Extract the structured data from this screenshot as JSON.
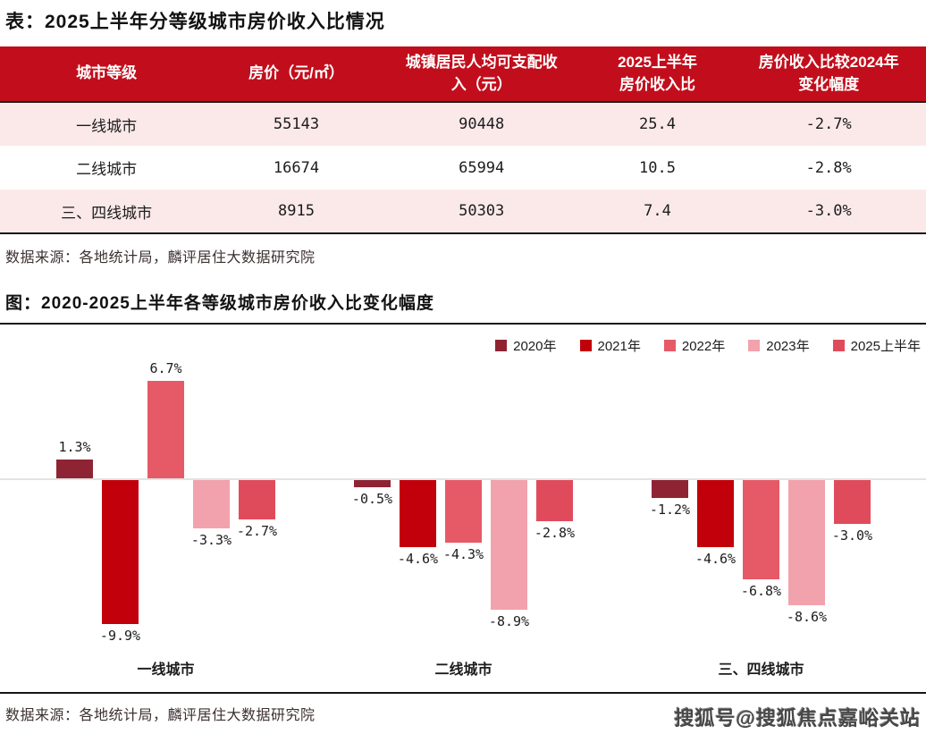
{
  "table_section": {
    "title": "表：2025上半年分等级城市房价收入比情况",
    "columns": [
      "城市等级",
      "房价（元/㎡）",
      "城镇居民人均可支配收\n入（元）",
      "2025上半年\n房价收入比",
      "房价收入比较2024年\n变化幅度"
    ],
    "rows": [
      {
        "tier": "一线城市",
        "price": "55143",
        "income": "90448",
        "ratio": "25.4",
        "change": "-2.7%"
      },
      {
        "tier": "二线城市",
        "price": "16674",
        "income": "65994",
        "ratio": "10.5",
        "change": "-2.8%"
      },
      {
        "tier": "三、四线城市",
        "price": "8915",
        "income": "50303",
        "ratio": "7.4",
        "change": "-3.0%"
      }
    ],
    "source": "数据来源：各地统计局，麟评居住大数据研究院"
  },
  "chart_section": {
    "title": "图：2020-2025上半年各等级城市房价收入比变化幅度",
    "source": "数据来源：各地统计局，麟评居住大数据研究院"
  },
  "chart_data": {
    "type": "bar",
    "title": "2020-2025上半年各等级城市房价收入比变化幅度",
    "categories": [
      "一线城市",
      "二线城市",
      "三、四线城市"
    ],
    "series": [
      {
        "name": "2020年",
        "color": "#8E2433",
        "values": [
          1.3,
          -0.5,
          -1.2
        ]
      },
      {
        "name": "2021年",
        "color": "#C2000B",
        "values": [
          -9.9,
          -4.6,
          -4.6
        ]
      },
      {
        "name": "2022年",
        "color": "#E65A68",
        "values": [
          6.7,
          -4.3,
          -6.8
        ]
      },
      {
        "name": "2023年",
        "color": "#F2A2AC",
        "values": [
          -3.3,
          -8.9,
          -8.6
        ]
      },
      {
        "name": "2025上半年",
        "color": "#E04B5C",
        "values": [
          -2.7,
          -2.8,
          -3.0
        ]
      }
    ],
    "value_suffix": "%",
    "ylim": [
      -11,
      8
    ],
    "grid": false,
    "legend_position": "top-right",
    "zero_axis": true
  },
  "watermark": {
    "text": "搜狐号@搜狐焦点嘉峪关站"
  },
  "colors": {
    "header_bg": "#C20E1C",
    "row_pink": "#FBE9E9",
    "rule_black": "#161616",
    "zero_line": "#E3E3E3"
  }
}
